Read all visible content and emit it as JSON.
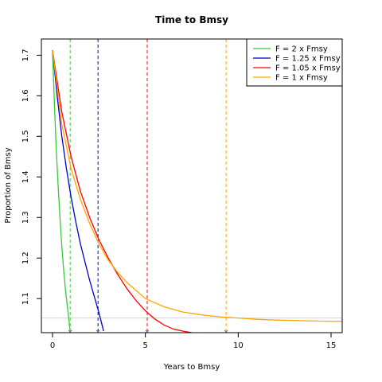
{
  "chart_data": {
    "type": "line",
    "title": "Time to Bmsy",
    "xlabel": "Years to Bmsy",
    "ylabel": "Proportion of Bmsy",
    "xlim": [
      -0.6,
      15.6
    ],
    "ylim": [
      1.016,
      1.74
    ],
    "x_ticks": [
      0,
      5,
      10,
      15
    ],
    "y_ticks": [
      1.1,
      1.2,
      1.3,
      1.4,
      1.5,
      1.6,
      1.7
    ],
    "x_tick_labels": [
      "0",
      "5",
      "10",
      "15"
    ],
    "y_tick_labels": [
      "1.1",
      "1.2",
      "1.3",
      "1.4",
      "1.5",
      "1.6",
      "1.7"
    ],
    "legend_position": "top-right",
    "reference_line_y": 1.052,
    "series": [
      {
        "name": "F = 2 x Fmsy",
        "color": "#33cc33",
        "x": [
          0,
          0.1,
          0.2,
          0.3,
          0.4,
          0.5,
          0.6,
          0.7,
          0.8,
          0.9,
          0.95
        ],
        "y": [
          1.712,
          1.58,
          1.47,
          1.38,
          1.3,
          1.23,
          1.17,
          1.12,
          1.08,
          1.04,
          1.02
        ],
        "time_to_bmsy": 0.95
      },
      {
        "name": "F = 1.25 x Fmsy",
        "color": "#0000cc",
        "x": [
          0,
          0.25,
          0.5,
          0.75,
          1.0,
          1.25,
          1.5,
          1.75,
          2.0,
          2.25,
          2.5,
          2.75
        ],
        "y": [
          1.712,
          1.6,
          1.5,
          1.42,
          1.35,
          1.29,
          1.235,
          1.19,
          1.145,
          1.105,
          1.065,
          1.02
        ],
        "time_to_bmsy": 2.45
      },
      {
        "name": "F = 1.05 x Fmsy",
        "color": "#ff0000",
        "x": [
          0,
          0.5,
          1.0,
          1.5,
          2.0,
          2.5,
          3.0,
          3.5,
          4.0,
          4.5,
          5.0,
          5.5,
          6.0,
          6.5,
          7.0,
          7.5
        ],
        "y": [
          1.712,
          1.56,
          1.45,
          1.365,
          1.3,
          1.245,
          1.2,
          1.16,
          1.125,
          1.095,
          1.07,
          1.05,
          1.035,
          1.025,
          1.02,
          1.016
        ],
        "time_to_bmsy": 5.1
      },
      {
        "name": "F = 1 x Fmsy",
        "color": "#ffa500",
        "x": [
          0,
          0.5,
          1.0,
          1.5,
          2.0,
          2.5,
          3.0,
          3.5,
          4.0,
          5.0,
          6.0,
          7.0,
          8.0,
          9.0,
          10.0,
          11.0,
          12.0,
          13.0,
          14.0,
          15.0,
          15.6
        ],
        "y": [
          1.712,
          1.53,
          1.42,
          1.345,
          1.285,
          1.235,
          1.195,
          1.165,
          1.14,
          1.1,
          1.08,
          1.067,
          1.06,
          1.055,
          1.052,
          1.049,
          1.047,
          1.046,
          1.045,
          1.044,
          1.044
        ],
        "time_to_bmsy": 9.35
      }
    ]
  }
}
